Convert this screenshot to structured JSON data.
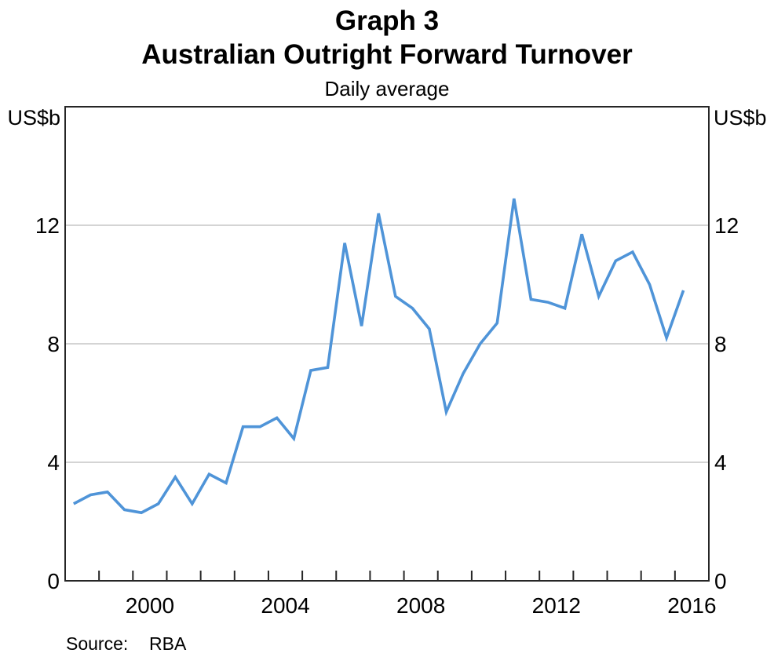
{
  "header": {
    "graph_number": "Graph 3",
    "title": "Australian Outright Forward Turnover",
    "subtitle": "Daily average"
  },
  "axes": {
    "unit_left": "US$b",
    "unit_right": "US$b"
  },
  "footer": {
    "source_label": "Source:",
    "source_value": "RBA"
  },
  "chart_data": {
    "type": "line",
    "title": "Australian Outright Forward Turnover",
    "subtitle": "Daily average",
    "ylabel": "US$b",
    "grid": "horizontal",
    "legend_position": "none",
    "xlim": [
      1998,
      2017
    ],
    "ylim": [
      0,
      16
    ],
    "yticks": [
      0,
      4,
      8,
      12
    ],
    "xticks": [
      1999,
      2000,
      2001,
      2002,
      2003,
      2004,
      2005,
      2006,
      2007,
      2008,
      2009,
      2010,
      2011,
      2012,
      2013,
      2014,
      2015,
      2016
    ],
    "xlabels": [
      {
        "text": "2000",
        "x": 2000.5
      },
      {
        "text": "2004",
        "x": 2004.5
      },
      {
        "text": "2008",
        "x": 2008.5
      },
      {
        "text": "2012",
        "x": 2012.5
      },
      {
        "text": "2016",
        "x": 2016.5
      }
    ],
    "series": [
      {
        "name": "Australian outright forward turnover (daily average)",
        "color": "#4F94D8",
        "frequency": "semiannual",
        "x": [
          1998.25,
          1998.75,
          1999.25,
          1999.75,
          2000.25,
          2000.75,
          2001.25,
          2001.75,
          2002.25,
          2002.75,
          2003.25,
          2003.75,
          2004.25,
          2004.75,
          2005.25,
          2005.75,
          2006.25,
          2006.75,
          2007.25,
          2007.75,
          2008.25,
          2008.75,
          2009.25,
          2009.75,
          2010.25,
          2010.75,
          2011.25,
          2011.75,
          2012.25,
          2012.75,
          2013.25,
          2013.75,
          2014.25,
          2014.75,
          2015.25,
          2015.75,
          2016.25
        ],
        "values": [
          2.6,
          2.9,
          3.0,
          2.4,
          2.3,
          2.6,
          3.5,
          2.6,
          3.6,
          3.3,
          5.2,
          5.2,
          5.5,
          4.8,
          7.1,
          7.2,
          11.4,
          8.6,
          12.4,
          9.6,
          9.2,
          8.5,
          5.7,
          7.0,
          8.0,
          8.7,
          12.9,
          9.5,
          9.4,
          9.2,
          11.7,
          9.6,
          10.8,
          11.1,
          10.0,
          8.2,
          9.8
        ]
      }
    ]
  }
}
